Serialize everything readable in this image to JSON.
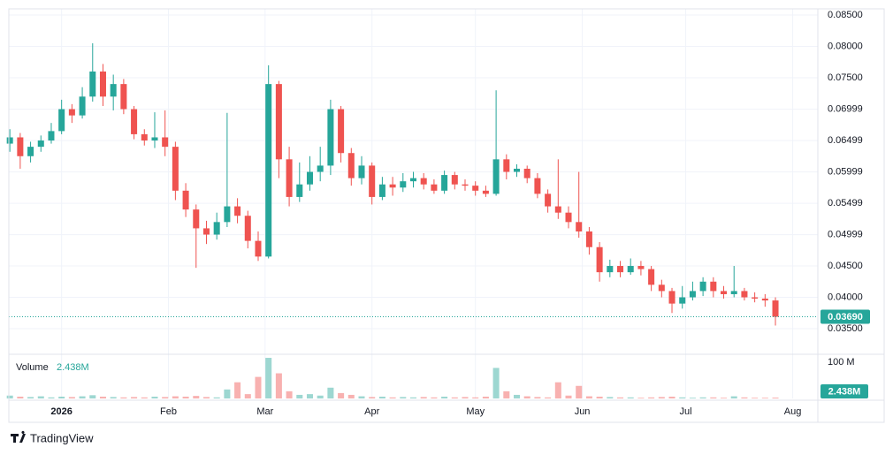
{
  "chart_data": {
    "type": "candlestick",
    "up_color": "#26a69a",
    "down_color": "#ef5350",
    "grid": true,
    "xlim": [
      -0.1,
      78.1
    ],
    "xticks": [
      {
        "value": 5,
        "label": "2026"
      },
      {
        "value": 15.33,
        "label": "Feb"
      },
      {
        "value": 24.67,
        "label": "Mar"
      },
      {
        "value": 35,
        "label": "Apr"
      },
      {
        "value": 45,
        "label": "May"
      },
      {
        "value": 55.33,
        "label": "Jun"
      },
      {
        "value": 65.33,
        "label": "Jul"
      },
      {
        "value": 75.67,
        "label": "Aug"
      }
    ],
    "ylim": [
      0.03106,
      0.08599
    ],
    "yticks": [
      {
        "value": 0.085,
        "label": "0.08500"
      },
      {
        "value": 0.08,
        "label": "0.08000"
      },
      {
        "value": 0.075,
        "label": "0.07500"
      },
      {
        "value": 0.06999,
        "label": "0.06999"
      },
      {
        "value": 0.06499,
        "label": "0.06499"
      },
      {
        "value": 0.05999,
        "label": "0.05999"
      },
      {
        "value": 0.05499,
        "label": "0.05499"
      },
      {
        "value": 0.04999,
        "label": "0.04999"
      },
      {
        "value": 0.045,
        "label": "0.04500"
      },
      {
        "value": 0.04,
        "label": "0.04000"
      },
      {
        "value": 0.035,
        "label": "0.03500"
      }
    ],
    "open": [
      0.0645,
      0.0655,
      0.0625,
      0.064,
      0.065,
      0.0665,
      0.07,
      0.069,
      0.072,
      0.076,
      0.072,
      0.074,
      0.07,
      0.066,
      0.065,
      0.0655,
      0.064,
      0.057,
      0.054,
      0.051,
      0.05,
      0.052,
      0.0545,
      0.053,
      0.049,
      0.0465,
      0.074,
      0.062,
      0.056,
      0.058,
      0.06,
      0.061,
      0.07,
      0.063,
      0.059,
      0.061,
      0.056,
      0.058,
      0.0575,
      0.0585,
      0.059,
      0.058,
      0.057,
      0.0595,
      0.058,
      0.0578,
      0.057,
      0.0565,
      0.062,
      0.06,
      0.0605,
      0.059,
      0.0565,
      0.0545,
      0.0535,
      0.052,
      0.0505,
      0.048,
      0.044,
      0.045,
      0.044,
      0.045,
      0.0445,
      0.042,
      0.041,
      0.039,
      0.04,
      0.041,
      0.0425,
      0.041,
      0.0405,
      0.041,
      0.04,
      0.0398,
      0.0395
    ],
    "high": [
      0.0668,
      0.0662,
      0.0648,
      0.0658,
      0.0678,
      0.0715,
      0.0708,
      0.0735,
      0.0805,
      0.0772,
      0.0755,
      0.0748,
      0.0705,
      0.0668,
      0.0695,
      0.0698,
      0.0648,
      0.0582,
      0.0548,
      0.0522,
      0.0535,
      0.0694,
      0.0558,
      0.0538,
      0.0505,
      0.077,
      0.0745,
      0.064,
      0.0615,
      0.0625,
      0.064,
      0.0715,
      0.0705,
      0.0638,
      0.0625,
      0.0615,
      0.0592,
      0.0592,
      0.0598,
      0.06,
      0.0598,
      0.0588,
      0.0602,
      0.06,
      0.0588,
      0.0585,
      0.0578,
      0.073,
      0.0628,
      0.0612,
      0.061,
      0.0598,
      0.0572,
      0.062,
      0.0545,
      0.06,
      0.0512,
      0.0488,
      0.046,
      0.0458,
      0.0462,
      0.0458,
      0.045,
      0.0428,
      0.0415,
      0.0418,
      0.0425,
      0.0432,
      0.0432,
      0.0418,
      0.045,
      0.0415,
      0.0408,
      0.0405,
      0.04
    ],
    "low": [
      0.0632,
      0.0605,
      0.0615,
      0.0632,
      0.0645,
      0.066,
      0.0678,
      0.0685,
      0.0712,
      0.0705,
      0.0698,
      0.0692,
      0.0652,
      0.0642,
      0.0638,
      0.0625,
      0.0555,
      0.0528,
      0.0447,
      0.0485,
      0.0492,
      0.0512,
      0.0518,
      0.0478,
      0.0458,
      0.0462,
      0.059,
      0.0545,
      0.0552,
      0.057,
      0.0585,
      0.0595,
      0.0615,
      0.0578,
      0.058,
      0.0548,
      0.0555,
      0.0562,
      0.0568,
      0.0575,
      0.0572,
      0.0565,
      0.0565,
      0.0572,
      0.057,
      0.0562,
      0.056,
      0.0562,
      0.0588,
      0.0592,
      0.0582,
      0.0558,
      0.0535,
      0.0525,
      0.051,
      0.0495,
      0.0468,
      0.0425,
      0.0432,
      0.0432,
      0.0436,
      0.0435,
      0.041,
      0.04,
      0.0375,
      0.0382,
      0.0395,
      0.0402,
      0.04,
      0.0398,
      0.04,
      0.0395,
      0.0392,
      0.0385,
      0.0355
    ],
    "close": [
      0.0655,
      0.0625,
      0.064,
      0.065,
      0.0665,
      0.07,
      0.069,
      0.072,
      0.076,
      0.072,
      0.074,
      0.07,
      0.066,
      0.065,
      0.0655,
      0.064,
      0.057,
      0.054,
      0.051,
      0.05,
      0.052,
      0.0545,
      0.053,
      0.049,
      0.0465,
      0.074,
      0.062,
      0.056,
      0.058,
      0.06,
      0.061,
      0.07,
      0.063,
      0.059,
      0.061,
      0.056,
      0.058,
      0.0575,
      0.0585,
      0.059,
      0.058,
      0.057,
      0.0595,
      0.058,
      0.0578,
      0.057,
      0.0565,
      0.062,
      0.06,
      0.0605,
      0.059,
      0.0565,
      0.0545,
      0.0535,
      0.052,
      0.0505,
      0.048,
      0.044,
      0.045,
      0.044,
      0.045,
      0.0445,
      0.042,
      0.041,
      0.039,
      0.04,
      0.041,
      0.0425,
      0.041,
      0.0405,
      0.041,
      0.04,
      0.0398,
      0.0395,
      0.0369
    ],
    "last_price": {
      "value": 0.0369,
      "label": "0.03690"
    },
    "volume": {
      "name": "Volume",
      "values": [
        8,
        5,
        4,
        6,
        3,
        5,
        4,
        6,
        9,
        5,
        4,
        3,
        4,
        3,
        5,
        4,
        6,
        5,
        7,
        4,
        3,
        25,
        45,
        12,
        60,
        113,
        70,
        20,
        10,
        12,
        8,
        30,
        15,
        10,
        6,
        4,
        5,
        3,
        4,
        3,
        4,
        3,
        5,
        3,
        4,
        3,
        5,
        85,
        20,
        10,
        6,
        4,
        3,
        45,
        8,
        35,
        6,
        5,
        4,
        3,
        3,
        2,
        3,
        4,
        5,
        3,
        2,
        3,
        3,
        2,
        6,
        3,
        2,
        2,
        2.438
      ],
      "ylim": [
        0,
        118
      ],
      "yticks": [
        {
          "value": 100,
          "label": "100 M"
        }
      ],
      "last": {
        "value": 2.438,
        "label": "2.438M"
      }
    },
    "watermark": "TradingView"
  }
}
